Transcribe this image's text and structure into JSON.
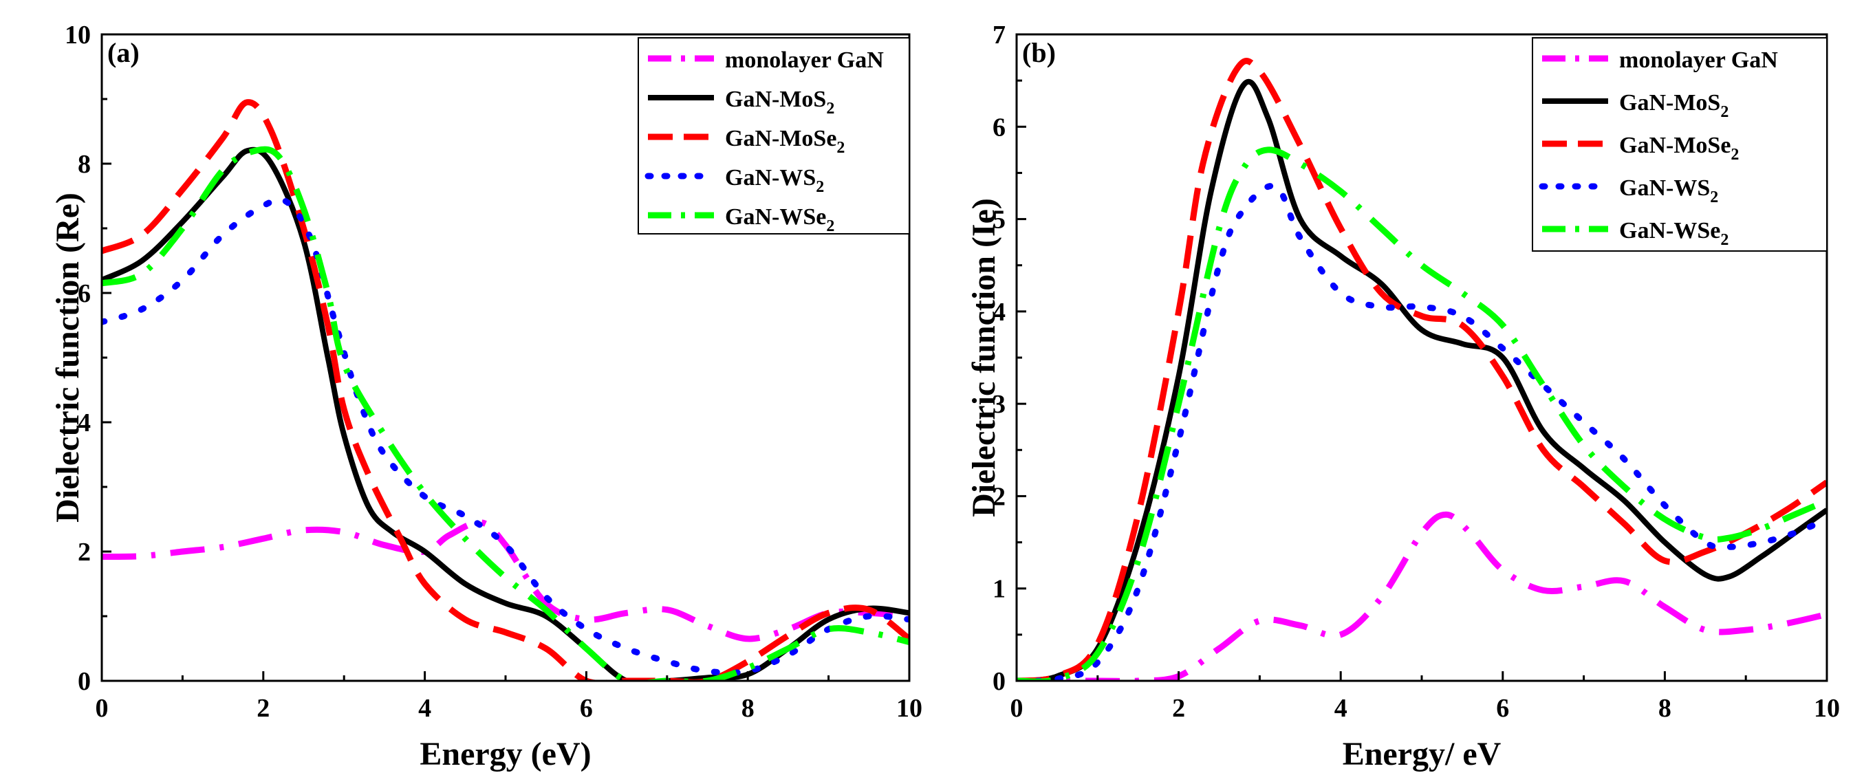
{
  "chart_data": [
    {
      "type": "line",
      "panel_label": "(a)",
      "xlabel": "Energy (eV)",
      "ylabel": "Dielectric function (Re)",
      "xlim": [
        0,
        10
      ],
      "ylim": [
        0,
        10
      ],
      "xticks": [
        0,
        2,
        4,
        6,
        8,
        10
      ],
      "yticks": [
        0,
        2,
        4,
        6,
        8,
        10
      ],
      "legend_position": "top-right",
      "series": [
        {
          "name": "monolayer GaN",
          "name_base": "monolayer GaN",
          "name_sub": "",
          "color": "#ff00ff",
          "style": "dashdot",
          "x": [
            0,
            0.5,
            1,
            1.5,
            2,
            2.5,
            3,
            3.5,
            4,
            4.3,
            4.7,
            5,
            5.5,
            6,
            6.5,
            7,
            7.5,
            8,
            8.5,
            9,
            9.5,
            10
          ],
          "y": [
            1.92,
            1.93,
            2.0,
            2.07,
            2.2,
            2.33,
            2.3,
            2.1,
            2.0,
            2.25,
            2.45,
            2.1,
            1.2,
            0.95,
            1.05,
            1.1,
            0.85,
            0.65,
            0.8,
            1.05,
            1.05,
            1.0
          ]
        },
        {
          "name": "GaN-MoS2",
          "name_base": "GaN-MoS",
          "name_sub": "2",
          "color": "#000000",
          "style": "solid",
          "x": [
            0,
            0.5,
            1,
            1.5,
            1.8,
            2.1,
            2.5,
            2.8,
            3,
            3.3,
            3.6,
            4,
            4.5,
            5,
            5.5,
            6,
            6.5,
            7,
            7.5,
            8,
            8.5,
            9,
            9.5,
            10
          ],
          "y": [
            6.2,
            6.5,
            7.1,
            7.8,
            8.2,
            8.0,
            6.8,
            5.0,
            3.8,
            2.7,
            2.3,
            2.0,
            1.5,
            1.2,
            1.0,
            0.5,
            0.0,
            0.0,
            0.05,
            0.1,
            0.5,
            0.95,
            1.12,
            1.05
          ]
        },
        {
          "name": "GaN-MoSe2",
          "name_base": "GaN-MoSe",
          "name_sub": "2",
          "color": "#ff0000",
          "style": "dashed",
          "x": [
            0,
            0.5,
            1,
            1.5,
            1.8,
            2.1,
            2.5,
            2.8,
            3,
            3.3,
            3.7,
            4,
            4.5,
            5,
            5.5,
            6,
            6.5,
            7,
            7.5,
            8,
            8.5,
            9,
            9.5,
            10
          ],
          "y": [
            6.65,
            6.9,
            7.6,
            8.4,
            8.95,
            8.5,
            7.0,
            5.5,
            4.2,
            3.2,
            2.2,
            1.5,
            0.95,
            0.75,
            0.5,
            0.0,
            0.0,
            0.0,
            0.0,
            0.3,
            0.7,
            1.05,
            1.1,
            0.65
          ]
        },
        {
          "name": "GaN-WS2",
          "name_base": "GaN-WS",
          "name_sub": "2",
          "color": "#0000ff",
          "style": "dotted",
          "x": [
            0,
            0.5,
            1,
            1.5,
            2,
            2.3,
            2.6,
            2.9,
            3.2,
            3.5,
            4,
            4.5,
            5,
            5.5,
            6,
            6.5,
            7,
            7.5,
            8,
            8.5,
            9,
            9.5,
            10
          ],
          "y": [
            5.55,
            5.75,
            6.2,
            6.9,
            7.35,
            7.4,
            6.8,
            5.5,
            4.3,
            3.5,
            2.85,
            2.55,
            2.1,
            1.3,
            0.8,
            0.5,
            0.3,
            0.15,
            0.15,
            0.4,
            0.8,
            1.0,
            0.95
          ]
        },
        {
          "name": "GaN-WSe2",
          "name_base": "GaN-WSe",
          "name_sub": "2",
          "color": "#00ff00",
          "style": "dashdot",
          "x": [
            0,
            0.5,
            1,
            1.5,
            1.9,
            2.2,
            2.5,
            2.8,
            3,
            3.5,
            4,
            4.5,
            5,
            5.5,
            6,
            6.5,
            7,
            7.5,
            8,
            8.5,
            9,
            9.5,
            10
          ],
          "y": [
            6.15,
            6.3,
            7.0,
            7.9,
            8.2,
            8.1,
            7.3,
            6.0,
            4.9,
            3.8,
            2.9,
            2.2,
            1.6,
            1.1,
            0.5,
            0.0,
            0.0,
            0.0,
            0.2,
            0.5,
            0.8,
            0.75,
            0.6
          ]
        }
      ]
    },
    {
      "type": "line",
      "panel_label": "(b)",
      "xlabel": "Energy/ eV",
      "ylabel": "Dielectric function (Ie)",
      "xlim": [
        0,
        10
      ],
      "ylim": [
        0,
        7
      ],
      "xticks": [
        0,
        2,
        4,
        6,
        8,
        10
      ],
      "yticks": [
        0,
        1,
        2,
        3,
        4,
        5,
        6,
        7
      ],
      "legend_position": "top-right",
      "series": [
        {
          "name": "monolayer GaN",
          "name_base": "monolayer GaN",
          "name_sub": "",
          "color": "#ff00ff",
          "style": "dashdot",
          "x": [
            0,
            1,
            1.5,
            2,
            2.5,
            3,
            3.5,
            4,
            4.5,
            5,
            5.3,
            5.6,
            6,
            6.5,
            7,
            7.5,
            8,
            8.5,
            9,
            9.5,
            10
          ],
          "y": [
            0.0,
            0.0,
            0.0,
            0.05,
            0.35,
            0.65,
            0.6,
            0.5,
            0.9,
            1.6,
            1.8,
            1.6,
            1.2,
            0.98,
            1.02,
            1.08,
            0.8,
            0.55,
            0.55,
            0.62,
            0.72
          ]
        },
        {
          "name": "GaN-MoS2",
          "name_base": "GaN-MoS",
          "name_sub": "2",
          "color": "#000000",
          "style": "solid",
          "x": [
            0,
            0.5,
            1,
            1.5,
            2,
            2.4,
            2.8,
            3.1,
            3.5,
            4,
            4.5,
            5,
            5.5,
            6,
            6.5,
            7,
            7.5,
            8,
            8.5,
            8.8,
            9.2,
            9.6,
            10
          ],
          "y": [
            0.0,
            0.05,
            0.35,
            1.5,
            3.3,
            5.3,
            6.45,
            6.1,
            5.0,
            4.6,
            4.3,
            3.8,
            3.65,
            3.5,
            2.7,
            2.3,
            1.95,
            1.5,
            1.15,
            1.13,
            1.35,
            1.6,
            1.85
          ]
        },
        {
          "name": "GaN-MoSe2",
          "name_base": "GaN-MoSe",
          "name_sub": "2",
          "color": "#ff0000",
          "style": "dashed",
          "x": [
            0,
            0.5,
            1,
            1.5,
            2,
            2.3,
            2.7,
            3,
            3.5,
            4,
            4.5,
            5,
            5.5,
            6,
            6.5,
            7,
            7.5,
            8,
            8.5,
            9,
            9.5,
            10
          ],
          "y": [
            0.0,
            0.05,
            0.4,
            1.8,
            4.0,
            5.6,
            6.6,
            6.6,
            5.8,
            4.9,
            4.2,
            3.95,
            3.85,
            3.3,
            2.5,
            2.1,
            1.7,
            1.3,
            1.4,
            1.6,
            1.85,
            2.15
          ]
        },
        {
          "name": "GaN-WS2",
          "name_base": "GaN-WS",
          "name_sub": "2",
          "color": "#0000ff",
          "style": "dotted",
          "x": [
            0,
            0.5,
            1,
            1.5,
            2,
            2.5,
            2.8,
            3.2,
            3.5,
            4,
            4.5,
            5,
            5.5,
            6,
            6.5,
            7,
            7.5,
            8,
            8.5,
            8.8,
            9.2,
            9.6,
            10
          ],
          "y": [
            0.0,
            0.02,
            0.2,
            1.0,
            2.6,
            4.5,
            5.1,
            5.35,
            4.8,
            4.2,
            4.05,
            4.05,
            3.95,
            3.6,
            3.2,
            2.8,
            2.4,
            1.9,
            1.5,
            1.45,
            1.5,
            1.6,
            1.75
          ]
        },
        {
          "name": "GaN-WSe2",
          "name_base": "GaN-WSe",
          "name_sub": "2",
          "color": "#00ff00",
          "style": "dashdot",
          "x": [
            0,
            0.5,
            1,
            1.5,
            2,
            2.5,
            2.8,
            3.1,
            3.5,
            4,
            4.5,
            5,
            5.5,
            6,
            6.5,
            7,
            7.5,
            8,
            8.5,
            8.8,
            9.2,
            9.6,
            10
          ],
          "y": [
            0.0,
            0.02,
            0.3,
            1.3,
            3.0,
            4.9,
            5.55,
            5.75,
            5.6,
            5.3,
            4.9,
            4.5,
            4.2,
            3.85,
            3.2,
            2.55,
            2.1,
            1.75,
            1.55,
            1.55,
            1.65,
            1.8,
            1.95
          ]
        }
      ]
    }
  ]
}
